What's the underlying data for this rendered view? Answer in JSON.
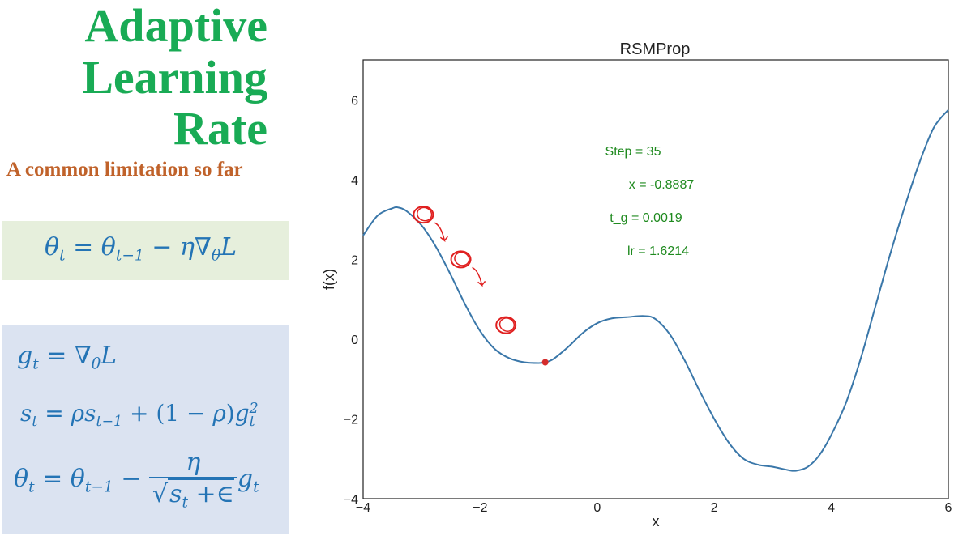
{
  "heading": {
    "line1": "Adaptive",
    "line2": "Learning",
    "line3": "Rate"
  },
  "subtitle": "A common limitation so far",
  "chart_data": {
    "type": "line",
    "title": "RSMProp",
    "xlabel": "x",
    "ylabel": "f(x)",
    "xlim": [
      -4,
      6
    ],
    "ylim": [
      -4,
      7
    ],
    "xticks": [
      -4,
      -2,
      0,
      2,
      4,
      6
    ],
    "yticks": [
      -4,
      -2,
      0,
      2,
      4,
      6
    ],
    "xtick_labels": [
      "−4",
      "−2",
      "0",
      "2",
      "4",
      "6"
    ],
    "ytick_labels": [
      "−4",
      "−2",
      "0",
      "2",
      "4",
      "6"
    ],
    "grid": false,
    "series": [
      {
        "x": [
          -4.0,
          -3.75,
          -3.5,
          -3.4,
          -3.25,
          -3.0,
          -2.75,
          -2.5,
          -2.25,
          -2.0,
          -1.75,
          -1.5,
          -1.25,
          -1.0,
          -0.89,
          -0.75,
          -0.5,
          -0.25,
          0.0,
          0.25,
          0.5,
          0.8,
          1.0,
          1.25,
          1.5,
          1.75,
          2.0,
          2.25,
          2.5,
          2.75,
          3.0,
          3.25,
          3.4,
          3.6,
          3.8,
          4.0,
          4.25,
          4.5,
          4.75,
          5.0,
          5.25,
          5.5,
          5.75,
          6.0
        ],
        "y": [
          2.6,
          3.1,
          3.28,
          3.3,
          3.2,
          2.85,
          2.3,
          1.6,
          0.85,
          0.2,
          -0.25,
          -0.48,
          -0.58,
          -0.6,
          -0.58,
          -0.5,
          -0.2,
          0.15,
          0.4,
          0.52,
          0.55,
          0.58,
          0.5,
          0.1,
          -0.55,
          -1.3,
          -2.0,
          -2.6,
          -3.0,
          -3.15,
          -3.2,
          -3.28,
          -3.3,
          -3.2,
          -2.9,
          -2.4,
          -1.6,
          -0.5,
          0.8,
          2.1,
          3.3,
          4.4,
          5.3,
          5.75
        ]
      }
    ],
    "point": {
      "x": -0.8887,
      "y": -0.58
    },
    "annotations": [
      "Step = 35",
      "x = -0.8887",
      "t_g = 0.0019",
      "lr = 1.6214"
    ],
    "ink_circles": [
      {
        "x": -2.97,
        "y": 3.12
      },
      {
        "x": -2.33,
        "y": 2.0
      },
      {
        "x": -1.56,
        "y": 0.35
      }
    ],
    "colors": {
      "line": "#3a77a9",
      "point": "#d42b2b",
      "annotation": "#1f8a1f",
      "ink": "#e02020"
    }
  }
}
